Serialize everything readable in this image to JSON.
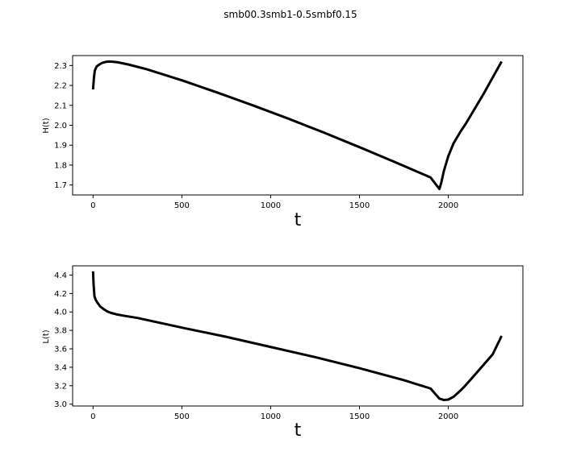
{
  "figure": {
    "title": "smb00.3smb1-0.5smbf0.15"
  },
  "chart_data": [
    {
      "type": "line",
      "xlabel": "t",
      "ylabel": "H(t)",
      "xlim": [
        -115,
        2420
      ],
      "ylim": [
        1.65,
        2.35
      ],
      "xticks": [
        0,
        500,
        1000,
        1500,
        2000
      ],
      "xtick_labels": [
        "0",
        "500",
        "1000",
        "1500",
        "2000"
      ],
      "yticks": [
        1.7,
        1.8,
        1.9,
        2.0,
        2.1,
        2.2,
        2.3
      ],
      "ytick_labels": [
        "1.7",
        "1.8",
        "1.9",
        "2.0",
        "2.1",
        "2.2",
        "2.3"
      ],
      "grid": false,
      "series": [
        {
          "color": "#000000",
          "x": [
            0,
            5,
            10,
            20,
            35,
            50,
            70,
            90,
            110,
            140,
            200,
            300,
            500,
            700,
            900,
            1100,
            1300,
            1500,
            1700,
            1900,
            1950,
            1960,
            1975,
            2000,
            2030,
            2070,
            2100,
            2150,
            2200,
            2250,
            2300
          ],
          "y": [
            2.18,
            2.24,
            2.275,
            2.295,
            2.305,
            2.313,
            2.318,
            2.32,
            2.319,
            2.316,
            2.305,
            2.282,
            2.226,
            2.164,
            2.1,
            2.033,
            1.963,
            1.89,
            1.815,
            1.738,
            1.68,
            1.71,
            1.77,
            1.845,
            1.91,
            1.97,
            2.01,
            2.085,
            2.16,
            2.24,
            2.32
          ]
        }
      ]
    },
    {
      "type": "line",
      "xlabel": "t",
      "ylabel": "L(t)",
      "xlim": [
        -115,
        2420
      ],
      "ylim": [
        2.98,
        4.5
      ],
      "xticks": [
        0,
        500,
        1000,
        1500,
        2000
      ],
      "xtick_labels": [
        "0",
        "500",
        "1000",
        "1500",
        "2000"
      ],
      "yticks": [
        3.0,
        3.2,
        3.4,
        3.6,
        3.8,
        4.0,
        4.2,
        4.4
      ],
      "ytick_labels": [
        "3.0",
        "3.2",
        "3.4",
        "3.6",
        "3.8",
        "4.0",
        "4.2",
        "4.4"
      ],
      "grid": false,
      "series": [
        {
          "color": "#000000",
          "x": [
            0,
            3,
            8,
            15,
            25,
            40,
            60,
            80,
            100,
            130,
            170,
            250,
            500,
            750,
            1000,
            1250,
            1500,
            1750,
            1900,
            1950,
            1975,
            2000,
            2030,
            2070,
            2100,
            2150,
            2200,
            2250,
            2300
          ],
          "y": [
            4.44,
            4.3,
            4.17,
            4.13,
            4.1,
            4.06,
            4.03,
            4.005,
            3.99,
            3.975,
            3.96,
            3.935,
            3.83,
            3.73,
            3.62,
            3.51,
            3.39,
            3.26,
            3.17,
            3.06,
            3.045,
            3.05,
            3.08,
            3.15,
            3.21,
            3.32,
            3.43,
            3.54,
            3.74
          ]
        }
      ]
    }
  ]
}
